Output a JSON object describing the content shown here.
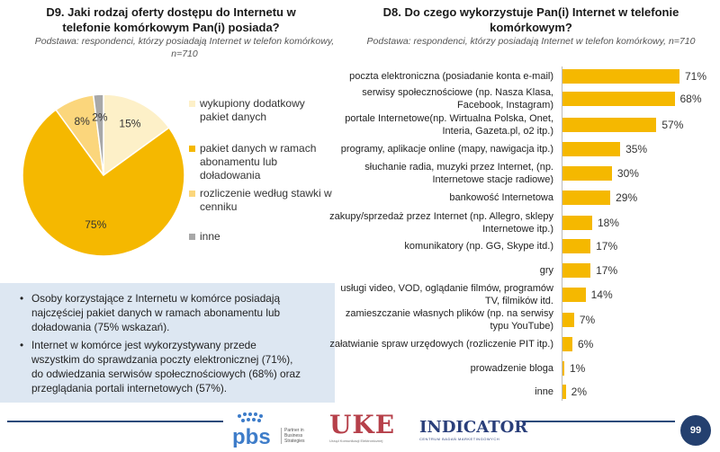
{
  "left_panel": {
    "title": "D9. Jaki rodzaj oferty dostępu do Internetu w telefonie komórkowym Pan(i) posiada?",
    "base": "Podstawa: respondenci, którzy posiadają Internet w telefon komórkowy, n=710"
  },
  "right_panel": {
    "title": "D8. Do czego wykorzystuje Pan(i) Internet w telefonie komórkowym?",
    "base": "Podstawa: respondenci, którzy posiadają Internet w telefon komórkowy, n=710"
  },
  "chart_data": [
    {
      "type": "pie",
      "categories": [
        "wykupiony dodatkowy pakiet danych",
        "pakiet danych w ramach abonamentu lub doładowania",
        "rozliczenie według stawki w cenniku",
        "inne"
      ],
      "values": [
        15,
        75,
        8,
        2
      ],
      "data_labels": [
        "15%",
        "75%",
        "8%",
        "2%"
      ],
      "colors": [
        "#fdf0c8",
        "#f5b800",
        "#fbd67c",
        "#a8a8a8"
      ],
      "legend_position": "right"
    },
    {
      "type": "bar",
      "orientation": "horizontal",
      "categories": [
        "poczta elektroniczna (posiadanie konta e-mail)",
        "serwisy społecznościowe (np. Nasza Klasa, Facebook, Instagram)",
        "portale Internetowe(np. Wirtualna Polska, Onet, Interia, Gazeta.pl, o2 itp.)",
        "programy, aplikacje online (mapy, nawigacja itp.)",
        "słuchanie radia, muzyki przez Internet, (np. Internetowe stacje radiowe)",
        "bankowość Internetowa",
        "zakupy/sprzedaż przez Internet (np. Allegro, sklepy Internetowe itp.)",
        "komunikatory (np. GG, Skype itd.)",
        "gry",
        "usługi video, VOD, oglądanie filmów, programów TV, filmików itd.",
        "zamieszczanie własnych plików (np. na serwisy typu YouTube)",
        "załatwianie spraw urzędowych (rozliczenie PIT itp.)",
        "prowadzenie bloga",
        "inne"
      ],
      "values": [
        71,
        68,
        57,
        35,
        30,
        29,
        18,
        17,
        17,
        14,
        7,
        6,
        1,
        2
      ],
      "data_labels": [
        "71%",
        "68%",
        "57%",
        "35%",
        "30%",
        "29%",
        "18%",
        "17%",
        "17%",
        "14%",
        "7%",
        "6%",
        "1%",
        "2%"
      ],
      "label_lines": [
        [
          "poczta elektroniczna (posiadanie konta e-mail)"
        ],
        [
          "serwisy społecznościowe (np. Nasza Klasa,",
          "Facebook, Instagram)"
        ],
        [
          "portale Internetowe(np. Wirtualna Polska, Onet,",
          "Interia, Gazeta.pl, o2 itp.)"
        ],
        [
          "programy, aplikacje online (mapy, nawigacja itp.)"
        ],
        [
          "słuchanie radia, muzyki przez Internet, (np.",
          "Internetowe stacje radiowe)"
        ],
        [
          "bankowość Internetowa"
        ],
        [
          "zakupy/sprzedaż przez Internet (np. Allegro, sklepy",
          "Internetowe itp.)"
        ],
        [
          "komunikatory (np. GG, Skype itd.)"
        ],
        [
          "gry"
        ],
        [
          "usługi video, VOD, oglądanie filmów, programów",
          "TV, filmików itd."
        ],
        [
          "zamieszczanie własnych plików (np. na serwisy",
          "typu YouTube)"
        ],
        [
          "załatwianie spraw urzędowych (rozliczenie PIT itp.)"
        ],
        [
          "prowadzenie bloga"
        ],
        [
          "inne"
        ]
      ],
      "color": "#f5b800",
      "xlim": [
        0,
        100
      ]
    }
  ],
  "bullets": [
    "Osoby korzystające z Internetu w komórce posiadają najczęściej pakiet danych w ramach abonamentu lub doładowania (75% wskazań).",
    "Internet w komórce jest wykorzystywany przede wszystkim do sprawdzania poczty elektronicznej (71%), do odwiedzania serwisów społecznościowych (68%) oraz przeglądania portali internetowych (57%)."
  ],
  "bullet_lines": [
    [
      "Osoby korzystające z Internetu w komórce posiadają",
      "najczęściej pakiet danych w ramach abonamentu lub",
      "doładowania (75% wskazań)."
    ],
    [
      "Internet w komórce jest wykorzystywany przede",
      "wszystkim do sprawdzania poczty elektronicznej (71%),",
      "do odwiedzania serwisów społecznościowych (68%) oraz",
      "przeglądania portali internetowych (57%)."
    ]
  ],
  "footer": {
    "pbs_logo": "pbs",
    "pbs_tagline": [
      "Partner in",
      "Business",
      "Strategies"
    ],
    "uke_logo": "UKE",
    "uke_tagline": "Urząd Komunikacji Elektronicznej",
    "indicator_logo": "INDICATOR",
    "indicator_tagline": "CENTRUM BADAŃ MARKETINGOWYCH",
    "page_number": "99"
  }
}
